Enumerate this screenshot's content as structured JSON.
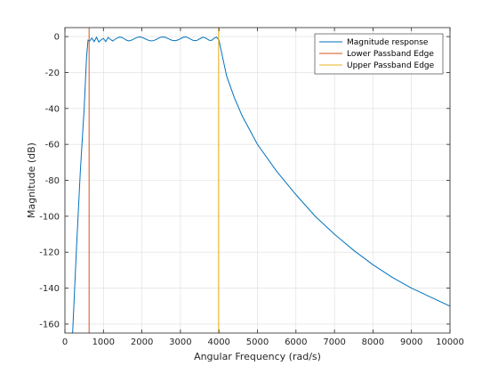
{
  "chart_data": {
    "type": "line",
    "title": "",
    "xlabel": "Angular Frequency (rad/s)",
    "ylabel": "Magnitude (dB)",
    "xlim": [
      0,
      10000
    ],
    "ylim": [
      -165,
      5
    ],
    "grid": true,
    "legend_position": "top-right",
    "x_ticks": [
      0,
      1000,
      2000,
      3000,
      4000,
      5000,
      6000,
      7000,
      8000,
      9000,
      10000
    ],
    "x_tick_labels": [
      "0",
      "1000",
      "2000",
      "3000",
      "4000",
      "5000",
      "6000",
      "7000",
      "8000",
      "9000",
      "10000"
    ],
    "y_ticks": [
      0,
      -20,
      -40,
      -60,
      -80,
      -100,
      -120,
      -140,
      -160
    ],
    "y_tick_labels": [
      "0",
      "-20",
      "-40",
      "-60",
      "-80",
      "-100",
      "-120",
      "-140",
      "-160"
    ],
    "series": [
      {
        "name": "Magnitude response",
        "color": "#0072BD",
        "kind": "curve",
        "x": [
          200,
          300,
          400,
          500,
          560,
          600,
          640,
          700,
          760,
          820,
          880,
          940,
          1000,
          1060,
          1120,
          1180,
          1240,
          1300,
          1360,
          1420,
          1480,
          1540,
          1600,
          1660,
          1720,
          1780,
          1840,
          1900,
          1960,
          2020,
          2080,
          2140,
          2200,
          2260,
          2320,
          2380,
          2440,
          2500,
          2560,
          2620,
          2680,
          2740,
          2800,
          2860,
          2920,
          2980,
          3040,
          3100,
          3160,
          3220,
          3280,
          3340,
          3400,
          3460,
          3520,
          3580,
          3640,
          3700,
          3760,
          3820,
          3880,
          3940,
          4000,
          4100,
          4200,
          4400,
          4600,
          4800,
          5000,
          5500,
          6000,
          6500,
          7000,
          7500,
          8000,
          8500,
          9000,
          9500,
          10000
        ],
        "y": [
          -165,
          -118,
          -75,
          -40,
          -12,
          -2,
          -2.5,
          -0.8,
          -2.8,
          -0.4,
          -3,
          -1.8,
          -1,
          -2.8,
          -0.5,
          -1.5,
          -2.5,
          -1.5,
          -0.8,
          -0.3,
          -0.5,
          -1.2,
          -2,
          -2.4,
          -2.1,
          -1.5,
          -0.8,
          -0.3,
          -0.2,
          -0.6,
          -1.2,
          -1.8,
          -2.3,
          -2.4,
          -2.1,
          -1.5,
          -0.8,
          -0.3,
          -0.2,
          -0.5,
          -1.1,
          -1.7,
          -2.2,
          -2.3,
          -2,
          -1.4,
          -0.7,
          -0.2,
          -0.3,
          -0.9,
          -1.6,
          -2.2,
          -2.3,
          -1.8,
          -1,
          -0.4,
          -0.6,
          -1.4,
          -2.2,
          -2,
          -0.8,
          -0.3,
          -2,
          -12,
          -22,
          -34,
          -44,
          -52,
          -60,
          -75,
          -88,
          -100,
          -110,
          -119,
          -127,
          -134,
          -140,
          -145,
          -150
        ]
      },
      {
        "name": "Lower Passband Edge",
        "color": "#D95319",
        "kind": "vline",
        "x": 628
      },
      {
        "name": "Upper Passband Edge",
        "color": "#EDB120",
        "kind": "vline",
        "x": 3990
      }
    ]
  }
}
